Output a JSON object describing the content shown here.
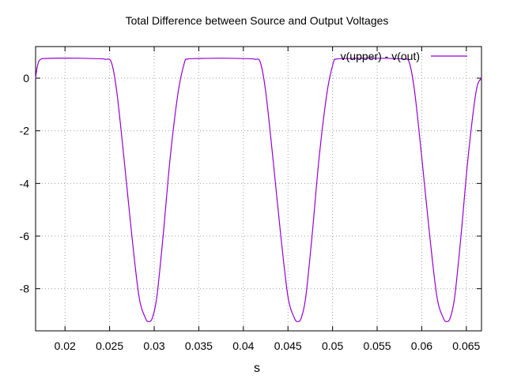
{
  "chart_data": {
    "type": "line",
    "title": "Total Difference between Source and Output Voltages",
    "xlabel": "s",
    "ylabel": "",
    "xlim": [
      0.0167,
      0.0667
    ],
    "ylim": [
      -9.6,
      1.2
    ],
    "xticks": [
      0.02,
      0.025,
      0.03,
      0.035,
      0.04,
      0.045,
      0.05,
      0.055,
      0.06,
      0.065
    ],
    "xtick_labels": [
      "0.02",
      "0.025",
      "0.03",
      "0.035",
      "0.04",
      "0.045",
      "0.05",
      "0.055",
      "0.06",
      "0.065"
    ],
    "yticks": [
      0,
      -2,
      -4,
      -6,
      -8
    ],
    "ytick_labels": [
      "0",
      "-2",
      "-4",
      "-6",
      "-8"
    ],
    "grid": true,
    "legend_position": "top-right",
    "series": [
      {
        "name": "v(upper) - v(out)",
        "color": "#9400d3",
        "x": [
          0.0167,
          0.0169,
          0.0172,
          0.018,
          0.021,
          0.0235,
          0.0245,
          0.0252,
          0.0258,
          0.0266,
          0.0275,
          0.0283,
          0.029,
          0.0294,
          0.0298,
          0.0303,
          0.031,
          0.0318,
          0.0327,
          0.0334,
          0.0337,
          0.0343,
          0.0375,
          0.0405,
          0.0413,
          0.0419,
          0.0425,
          0.0433,
          0.0442,
          0.045,
          0.0457,
          0.0461,
          0.0465,
          0.047,
          0.0477,
          0.0485,
          0.0494,
          0.0501,
          0.0504,
          0.051,
          0.0542,
          0.0572,
          0.058,
          0.0586,
          0.0592,
          0.06,
          0.0609,
          0.0617,
          0.0624,
          0.0628,
          0.0632,
          0.0637,
          0.0644,
          0.0652,
          0.0661,
          0.0667
        ],
        "y": [
          0.0,
          0.45,
          0.7,
          0.75,
          0.76,
          0.74,
          0.72,
          0.6,
          -0.5,
          -3.0,
          -6.0,
          -8.3,
          -9.1,
          -9.25,
          -9.1,
          -8.3,
          -6.0,
          -3.0,
          -0.5,
          0.6,
          0.72,
          0.74,
          0.76,
          0.74,
          0.72,
          0.6,
          -0.5,
          -3.0,
          -6.0,
          -8.3,
          -9.1,
          -9.25,
          -9.1,
          -8.3,
          -6.0,
          -3.0,
          -0.5,
          0.6,
          0.72,
          0.74,
          0.76,
          0.74,
          0.72,
          0.6,
          -0.5,
          -3.0,
          -6.0,
          -8.3,
          -9.1,
          -9.25,
          -9.1,
          -8.3,
          -6.0,
          -3.0,
          -0.5,
          0.0
        ]
      }
    ]
  }
}
